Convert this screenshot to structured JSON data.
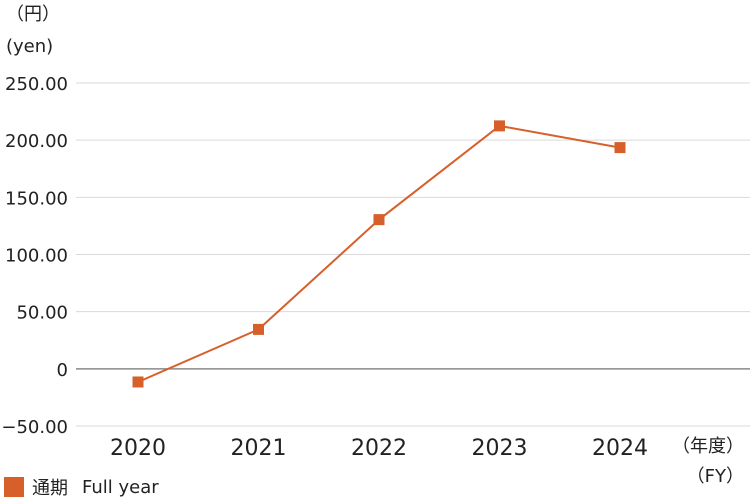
{
  "chart_data": {
    "type": "line",
    "y_unit_jp": "（円）",
    "y_unit_en": "(yen)",
    "x_unit_jp": "（年度）",
    "x_unit_en": "（FY）",
    "categories": [
      "2020",
      "2021",
      "2022",
      "2023",
      "2024"
    ],
    "y_ticks": [
      {
        "value": 250,
        "label": "250.00"
      },
      {
        "value": 200,
        "label": "200.00"
      },
      {
        "value": 150,
        "label": "150.00"
      },
      {
        "value": 100,
        "label": "100.00"
      },
      {
        "value": 50,
        "label": "50.00"
      },
      {
        "value": 0,
        "label": "0"
      },
      {
        "value": -50,
        "label": "−50.00"
      }
    ],
    "ylim": [
      -50,
      250
    ],
    "series": [
      {
        "name_jp": "通期",
        "name_en": "Full year",
        "color": "#d75f2a",
        "values": [
          -11.5,
          34.5,
          130.5,
          212.5,
          193.5
        ]
      }
    ],
    "grid": true,
    "legend_position": "bottom-left"
  }
}
